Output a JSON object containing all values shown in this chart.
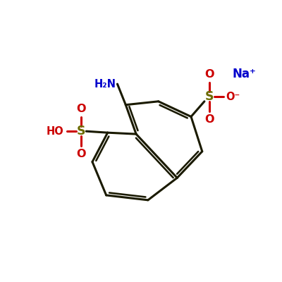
{
  "background_color": "#ffffff",
  "bond_color": "#1a1a00",
  "bond_width": 2.2,
  "sulfonate_color": "#cc0000",
  "sulfur_color": "#6b6b00",
  "nitrogen_color": "#0000cc",
  "sodium_color": "#0000cc",
  "figsize": [
    4.0,
    4.0
  ],
  "dpi": 100,
  "xlim": [
    0,
    10
  ],
  "ylim": [
    0,
    10
  ]
}
